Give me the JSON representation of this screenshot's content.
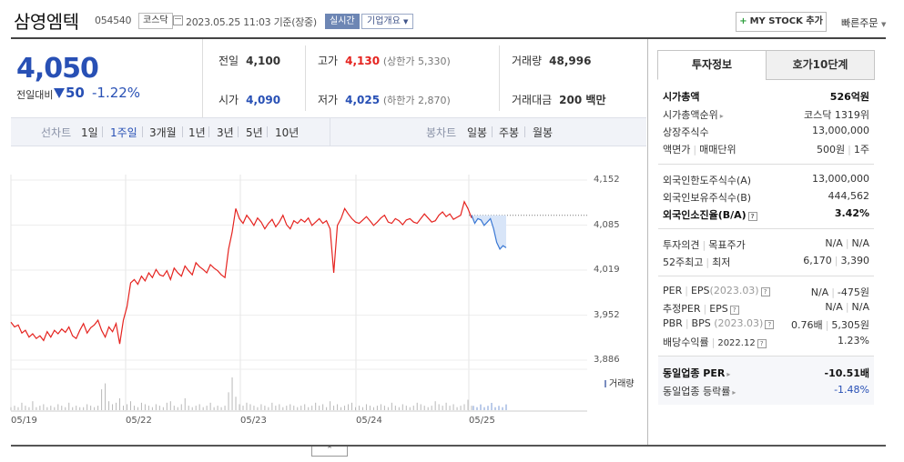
{
  "header": {
    "company_name": "삼영엠텍",
    "code": "054540",
    "market": "코스닥",
    "datetime": "2023.05.25 11:03",
    "basis": "기준(장중)",
    "realtime": "실시간",
    "profile": "기업개요",
    "mystock": "MY STOCK 추가",
    "quick_order": "빠른주문"
  },
  "quote": {
    "price": "4,050",
    "diff_label": "전일대비",
    "diff": "50",
    "rate": "-1.22%",
    "prev_close_label": "전일",
    "prev_close": "4,100",
    "open_label": "시가",
    "open": "4,090",
    "high_label": "고가",
    "high": "4,130",
    "upper_limit": "(상한가 5,330)",
    "low_label": "저가",
    "low": "4,025",
    "lower_limit": "(하한가 2,870)",
    "volume_label": "거래량",
    "volume": "48,996",
    "amount_label": "거래대금",
    "amount": "200 백만"
  },
  "chart_tabs": {
    "line_label": "선차트",
    "periods": [
      "1일",
      "1주일",
      "3개월",
      "1년",
      "3년",
      "5년",
      "10년"
    ],
    "active_period": "1주일",
    "candle_label": "봉차트",
    "candles": [
      "일봉",
      "주봉",
      "월봉"
    ]
  },
  "chart_data": {
    "type": "line",
    "y_ticks": [
      "4,152",
      "4,085",
      "4,019",
      "3,952",
      "3,886"
    ],
    "x_ticks": [
      "05/19",
      "05/22",
      "05/23",
      "05/24",
      "05/25"
    ],
    "ylim": [
      3886,
      4152
    ],
    "prev_close": 4100,
    "volume_legend": "거래량",
    "series": [
      {
        "color": "#e5231f",
        "values": [
          3942,
          3935,
          3938,
          3926,
          3930,
          3920,
          3925,
          3918,
          3922,
          3915,
          3928,
          3920,
          3930,
          3925,
          3932,
          3927,
          3935,
          3922,
          3918,
          3930,
          3940,
          3926,
          3934,
          3938,
          3945,
          3930,
          3920,
          3935,
          3928,
          3940,
          3910,
          3945,
          3965,
          4000,
          4005,
          3998,
          4010,
          4003,
          4015,
          4008,
          4020,
          4012,
          4010,
          4018,
          4005,
          4022,
          4015,
          4010,
          4025,
          4018,
          4012,
          4030,
          4024,
          4020,
          4015,
          4027,
          4022,
          4018,
          4012,
          4008,
          4050,
          4075,
          4110,
          4095,
          4088,
          4100,
          4093,
          4085,
          4096,
          4090,
          4080,
          4088,
          4094,
          4083,
          4090,
          4100,
          4086,
          4080,
          4092,
          4088,
          4094,
          4090,
          4096,
          4085,
          4090,
          4095,
          4088,
          4092,
          4080,
          4015,
          4085,
          4095,
          4110,
          4102,
          4095,
          4090,
          4088,
          4093,
          4098,
          4092,
          4085,
          4090,
          4096,
          4100,
          4090,
          4088,
          4095,
          4092,
          4086,
          4093,
          4095,
          4090,
          4088,
          4095,
          4102,
          4096,
          4090,
          4092,
          4100,
          4105,
          4098,
          4102,
          4094,
          4097,
          4100,
          4120,
          4110,
          4096
        ],
        "x_end": 0.775
      },
      {
        "color": "#3a78d4",
        "values": [
          4100,
          4088,
          4095,
          4093,
          4085,
          4090,
          4095,
          4080,
          4060,
          4050,
          4055,
          4052
        ]
      }
    ],
    "volume": [
      2,
      3,
      2,
      5,
      3,
      2,
      6,
      2,
      3,
      4,
      2,
      3,
      2,
      4,
      3,
      2,
      5,
      2,
      3,
      2,
      2,
      4,
      3,
      2,
      3,
      14,
      18,
      6,
      4,
      5,
      8,
      3,
      4,
      6,
      3,
      2,
      5,
      4,
      3,
      2,
      4,
      3,
      2,
      5,
      6,
      3,
      2,
      4,
      8,
      3,
      2,
      3,
      4,
      2,
      3,
      5,
      2,
      3,
      2,
      3,
      12,
      22,
      9,
      4,
      3,
      5,
      4,
      3,
      2,
      4,
      3,
      2,
      5,
      3,
      4,
      2,
      3,
      4,
      3,
      2,
      3,
      4,
      2,
      3,
      5,
      3,
      4,
      2,
      6,
      3,
      4,
      2,
      3,
      4,
      5,
      2,
      3,
      2,
      4,
      3,
      2,
      3,
      4,
      3,
      2,
      5,
      3,
      2,
      4,
      3,
      2,
      3,
      5,
      4,
      3,
      2,
      3,
      6,
      4,
      3,
      5,
      3,
      4,
      2,
      3,
      4,
      7,
      3
    ]
  },
  "right_panel": {
    "tab_info": "투자정보",
    "tab_orderbook": "호가10단계",
    "rows": {
      "mktcap_label": "시가총액",
      "mktcap": "526억원",
      "mktcap_rank_label": "시가총액순위",
      "mktcap_rank": "코스닥 1319위",
      "shares_label": "상장주식수",
      "shares": "13,000,000",
      "par_label": "액면가",
      "unit_label": "매매단위",
      "par": "500원",
      "unit": "1주",
      "foreign_limit_label": "외국인한도주식수(A)",
      "foreign_limit": "13,000,000",
      "foreign_hold_label": "외국인보유주식수(B)",
      "foreign_hold": "444,562",
      "foreign_ratio_label": "외국인소진율(B/A)",
      "foreign_ratio": "3.42%",
      "opinion_label": "투자의견",
      "target_label": "목표주가",
      "opinion": "N/A",
      "target": "N/A",
      "w52_high_label": "52주최고",
      "w52_low_label": "최저",
      "w52_high": "6,170",
      "w52_low": "3,390",
      "per_label": "PER",
      "eps_label": "EPS",
      "eps_year": "(2023.03)",
      "per": "N/A",
      "eps": "-475원",
      "est_per_label": "추정PER",
      "est_eps_label": "EPS",
      "est_per": "N/A",
      "est_eps": "N/A",
      "pbr_label": "PBR",
      "bps_label": "BPS",
      "bps_year": "(2023.03)",
      "pbr": "0.76배",
      "bps": "5,305원",
      "div_label": "배당수익률",
      "div_year": "2022.12",
      "div": "1.23%",
      "ind_per_label": "동일업종 PER",
      "ind_per": "-10.51배",
      "ind_rate_label": "동일업종 등락률",
      "ind_rate": "-1.48%"
    }
  }
}
